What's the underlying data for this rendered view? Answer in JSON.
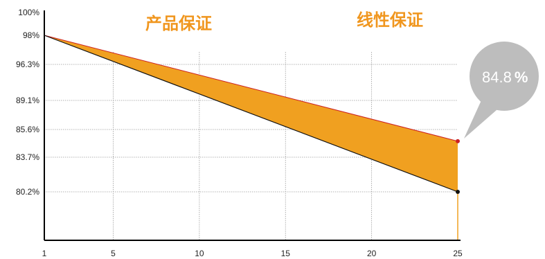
{
  "chart_data": {
    "type": "area",
    "headers": [
      "产品保证",
      "线性保证"
    ],
    "x_ticks": [
      1,
      5,
      10,
      15,
      20,
      25
    ],
    "y_ticks": [
      {
        "value": 100,
        "label": "100%"
      },
      {
        "value": 98,
        "label": "98%"
      },
      {
        "value": 96.3,
        "label": "96.3%"
      },
      {
        "value": 89.1,
        "label": "89.1%"
      },
      {
        "value": 85.6,
        "label": "85.6%"
      },
      {
        "value": 83.7,
        "label": "83.7%"
      },
      {
        "value": 80.2,
        "label": "80.2%"
      }
    ],
    "series": [
      {
        "x": [
          1,
          25
        ],
        "y": [
          98,
          84.8
        ]
      },
      {
        "x": [
          1,
          25
        ],
        "y": [
          98,
          80.2
        ]
      }
    ],
    "xlim": [
      1,
      25
    ],
    "callout": {
      "value": "84.8",
      "unit": "%"
    },
    "colors": {
      "fill": "#f0a020",
      "upper_line": "#cc2222",
      "lower_line": "#111111",
      "bubble": "#bdbdbd",
      "header": "#f0961e",
      "grid": "#999999"
    },
    "grid": true
  }
}
